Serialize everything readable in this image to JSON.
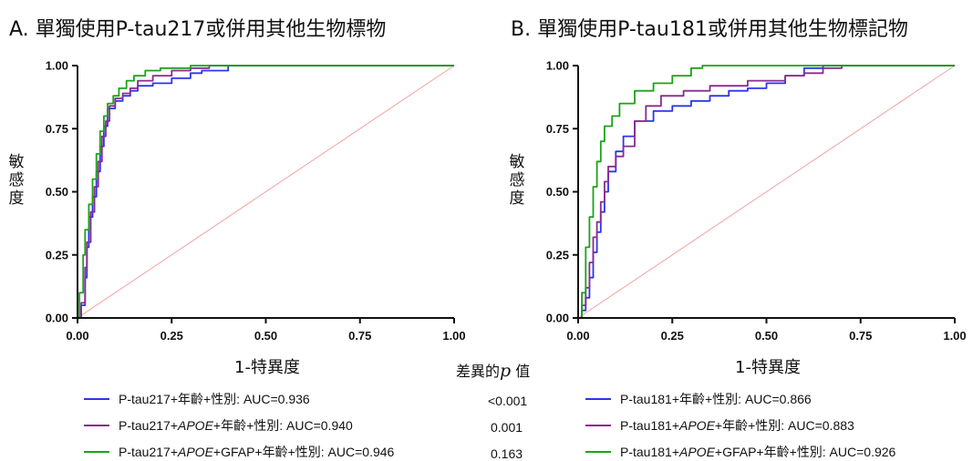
{
  "panels": {
    "a": {
      "title": "A. 單獨使用P-tau217或併用其他生物標物",
      "ylabel": "敏感度",
      "xlabel": "1-特異度"
    },
    "b": {
      "title": "B. 單獨使用P-tau181或併用其他生物標記物",
      "ylabel": "敏感度",
      "xlabel": "1-特異度"
    }
  },
  "p_header": {
    "prefix": "差異的",
    "p": "p",
    "suffix": " 值"
  },
  "p_values": [
    "<0.001",
    "0.001",
    "0.163"
  ],
  "legend": {
    "a": [
      {
        "pre": "P-tau217+年齡+性別: AUC=0.936",
        "italic": "",
        "post": ""
      },
      {
        "pre": "P-tau217+",
        "italic": "APOE",
        "post": "+年齡+性別: AUC=0.940"
      },
      {
        "pre": "P-tau217+",
        "italic": "APOE",
        "post": "+GFAP+年齡+性別: AUC=0.946"
      }
    ],
    "b": [
      {
        "pre": "P-tau181+年齡+性別: AUC=0.866",
        "italic": "",
        "post": ""
      },
      {
        "pre": "P-tau181+",
        "italic": "APOE",
        "post": "+年齡+性別: AUC=0.883"
      },
      {
        "pre": "P-tau181+",
        "italic": "APOE",
        "post": "+GFAP+年齡+性別: AUC=0.926"
      }
    ]
  },
  "colors": {
    "blue": "#2b35f0",
    "purple": "#8a2b8f",
    "green": "#1aa31a",
    "diagonal": "#f4a0a0",
    "axis": "#111111"
  },
  "chart_data": [
    {
      "type": "line",
      "title": "A. 單獨使用P-tau217或併用其他生物標物",
      "xlabel": "1-特異度",
      "ylabel": "敏感度",
      "xlim": [
        0,
        1
      ],
      "ylim": [
        0,
        1
      ],
      "x_ticks": [
        "0.00",
        "0.25",
        "0.50",
        "0.75",
        "1.00"
      ],
      "y_ticks": [
        "0.00",
        "0.25",
        "0.50",
        "0.75",
        "1.00"
      ],
      "reference_line": [
        [
          0,
          0
        ],
        [
          1,
          1
        ]
      ],
      "series": [
        {
          "name": "P-tau217+年齡+性別: AUC=0.936",
          "color": "#2b35f0",
          "points": [
            [
              0,
              0
            ],
            [
              0.01,
              0.05
            ],
            [
              0.02,
              0.16
            ],
            [
              0.025,
              0.28
            ],
            [
              0.03,
              0.4
            ],
            [
              0.04,
              0.48
            ],
            [
              0.05,
              0.58
            ],
            [
              0.06,
              0.68
            ],
            [
              0.07,
              0.76
            ],
            [
              0.08,
              0.83
            ],
            [
              0.1,
              0.86
            ],
            [
              0.12,
              0.88
            ],
            [
              0.14,
              0.9
            ],
            [
              0.16,
              0.92
            ],
            [
              0.2,
              0.93
            ],
            [
              0.25,
              0.95
            ],
            [
              0.3,
              0.97
            ],
            [
              0.33,
              0.98
            ],
            [
              0.4,
              1.0
            ],
            [
              1.0,
              1.0
            ]
          ]
        },
        {
          "name": "P-tau217+APOE+年齡+性別: AUC=0.940",
          "color": "#8a2b8f",
          "points": [
            [
              0,
              0
            ],
            [
              0.01,
              0.06
            ],
            [
              0.02,
              0.2
            ],
            [
              0.025,
              0.3
            ],
            [
              0.035,
              0.42
            ],
            [
              0.045,
              0.52
            ],
            [
              0.055,
              0.62
            ],
            [
              0.065,
              0.72
            ],
            [
              0.075,
              0.78
            ],
            [
              0.085,
              0.84
            ],
            [
              0.1,
              0.87
            ],
            [
              0.12,
              0.89
            ],
            [
              0.14,
              0.91
            ],
            [
              0.16,
              0.94
            ],
            [
              0.2,
              0.96
            ],
            [
              0.25,
              0.98
            ],
            [
              0.3,
              0.99
            ],
            [
              0.35,
              1.0
            ],
            [
              1.0,
              1.0
            ]
          ]
        },
        {
          "name": "P-tau217+APOE+GFAP+年齡+性別: AUC=0.946",
          "color": "#1aa31a",
          "points": [
            [
              0,
              0
            ],
            [
              0.005,
              0.1
            ],
            [
              0.015,
              0.25
            ],
            [
              0.02,
              0.35
            ],
            [
              0.03,
              0.45
            ],
            [
              0.04,
              0.55
            ],
            [
              0.05,
              0.65
            ],
            [
              0.06,
              0.74
            ],
            [
              0.07,
              0.8
            ],
            [
              0.08,
              0.85
            ],
            [
              0.095,
              0.88
            ],
            [
              0.11,
              0.91
            ],
            [
              0.13,
              0.94
            ],
            [
              0.15,
              0.96
            ],
            [
              0.18,
              0.98
            ],
            [
              0.22,
              0.99
            ],
            [
              0.3,
              1.0
            ],
            [
              1.0,
              1.0
            ]
          ]
        }
      ]
    },
    {
      "type": "line",
      "title": "B. 單獨使用P-tau181或併用其他生物標記物",
      "xlabel": "1-特異度",
      "ylabel": "敏感度",
      "xlim": [
        0,
        1
      ],
      "ylim": [
        0,
        1
      ],
      "x_ticks": [
        "0.00",
        "0.25",
        "0.50",
        "0.75",
        "1.00"
      ],
      "y_ticks": [
        "0.00",
        "0.25",
        "0.50",
        "0.75",
        "1.00"
      ],
      "reference_line": [
        [
          0,
          0
        ],
        [
          1,
          1
        ]
      ],
      "series": [
        {
          "name": "P-tau181+年齡+性別: AUC=0.866",
          "color": "#2b35f0",
          "points": [
            [
              0,
              0
            ],
            [
              0.01,
              0.03
            ],
            [
              0.02,
              0.08
            ],
            [
              0.03,
              0.16
            ],
            [
              0.04,
              0.26
            ],
            [
              0.05,
              0.34
            ],
            [
              0.06,
              0.42
            ],
            [
              0.07,
              0.5
            ],
            [
              0.08,
              0.58
            ],
            [
              0.1,
              0.66
            ],
            [
              0.12,
              0.72
            ],
            [
              0.15,
              0.78
            ],
            [
              0.2,
              0.82
            ],
            [
              0.25,
              0.84
            ],
            [
              0.3,
              0.86
            ],
            [
              0.35,
              0.88
            ],
            [
              0.4,
              0.9
            ],
            [
              0.45,
              0.91
            ],
            [
              0.5,
              0.93
            ],
            [
              0.55,
              0.96
            ],
            [
              0.6,
              0.99
            ],
            [
              0.65,
              1.0
            ],
            [
              1.0,
              1.0
            ]
          ]
        },
        {
          "name": "P-tau181+APOE+年齡+性別: AUC=0.883",
          "color": "#8a2b8f",
          "points": [
            [
              0,
              0
            ],
            [
              0.01,
              0.05
            ],
            [
              0.02,
              0.12
            ],
            [
              0.03,
              0.22
            ],
            [
              0.04,
              0.32
            ],
            [
              0.05,
              0.38
            ],
            [
              0.06,
              0.46
            ],
            [
              0.07,
              0.54
            ],
            [
              0.08,
              0.6
            ],
            [
              0.1,
              0.64
            ],
            [
              0.12,
              0.68
            ],
            [
              0.15,
              0.78
            ],
            [
              0.18,
              0.84
            ],
            [
              0.22,
              0.88
            ],
            [
              0.28,
              0.9
            ],
            [
              0.35,
              0.92
            ],
            [
              0.45,
              0.94
            ],
            [
              0.55,
              0.96
            ],
            [
              0.6,
              0.97
            ],
            [
              0.65,
              0.99
            ],
            [
              0.7,
              1.0
            ],
            [
              1.0,
              1.0
            ]
          ]
        },
        {
          "name": "P-tau181+APOE+GFAP+年齡+性別: AUC=0.926",
          "color": "#1aa31a",
          "points": [
            [
              0,
              0
            ],
            [
              0.01,
              0.1
            ],
            [
              0.02,
              0.28
            ],
            [
              0.03,
              0.4
            ],
            [
              0.04,
              0.52
            ],
            [
              0.05,
              0.62
            ],
            [
              0.06,
              0.7
            ],
            [
              0.07,
              0.76
            ],
            [
              0.09,
              0.8
            ],
            [
              0.11,
              0.85
            ],
            [
              0.15,
              0.9
            ],
            [
              0.2,
              0.93
            ],
            [
              0.25,
              0.96
            ],
            [
              0.3,
              0.99
            ],
            [
              0.33,
              1.0
            ],
            [
              1.0,
              1.0
            ]
          ]
        }
      ]
    }
  ]
}
